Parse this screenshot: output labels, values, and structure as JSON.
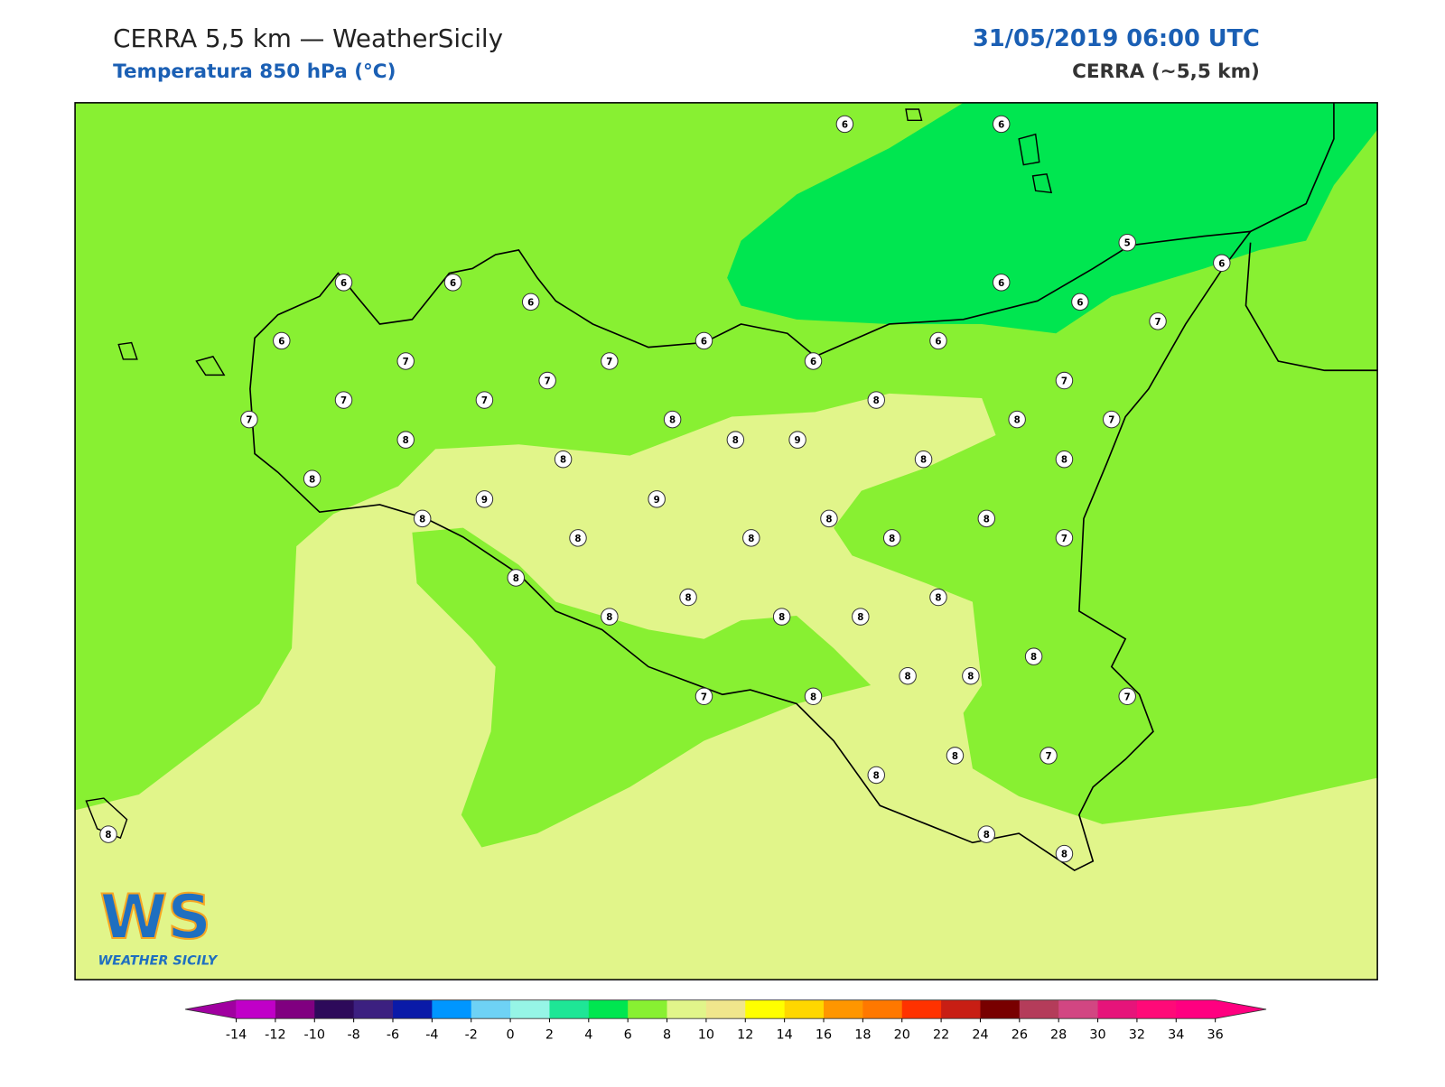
{
  "header": {
    "title": "CERRA 5,5 km — WeatherSicily",
    "subtitle": "Temperatura 850 hPa (°C)",
    "datetime": "31/05/2019 06:00 UTC",
    "model": "CERRA (~5,5 km)"
  },
  "logo": {
    "mark": "WS",
    "name": "WEATHER SICILY"
  },
  "stations": [
    6,
    6,
    5,
    6,
    6,
    6,
    6,
    6,
    6,
    7,
    6,
    6,
    6,
    7,
    7,
    6,
    7,
    7,
    7,
    7,
    8,
    7,
    8,
    8,
    7,
    8,
    8,
    9,
    8,
    8,
    8,
    8,
    9,
    9,
    8,
    8,
    8,
    8,
    8,
    8,
    7,
    8,
    8,
    8,
    8,
    8,
    8,
    8,
    8,
    8,
    7,
    8,
    7,
    8,
    7,
    8,
    8,
    8,
    8
  ],
  "colorbar": {
    "ticks": [
      -14,
      -12,
      -10,
      -8,
      -6,
      -4,
      -2,
      0,
      2,
      4,
      6,
      8,
      10,
      12,
      14,
      16,
      18,
      20,
      22,
      24,
      26,
      28,
      30,
      32,
      34,
      36
    ],
    "under_color": "#a000a0",
    "over_color": "#ff0080",
    "colors": [
      "#c000c8",
      "#800080",
      "#2d0a5a",
      "#3c2080",
      "#0a1aa8",
      "#0096ff",
      "#6ed2f5",
      "#96f5e6",
      "#1ee696",
      "#00e650",
      "#88f032",
      "#e1f58a",
      "#f0e68c",
      "#ffff00",
      "#ffd700",
      "#ff9600",
      "#ff7800",
      "#ff3200",
      "#c81e14",
      "#780000",
      "#b43c5a",
      "#d24682",
      "#e6147a",
      "#ff0a78",
      "#ff0080"
    ]
  }
}
